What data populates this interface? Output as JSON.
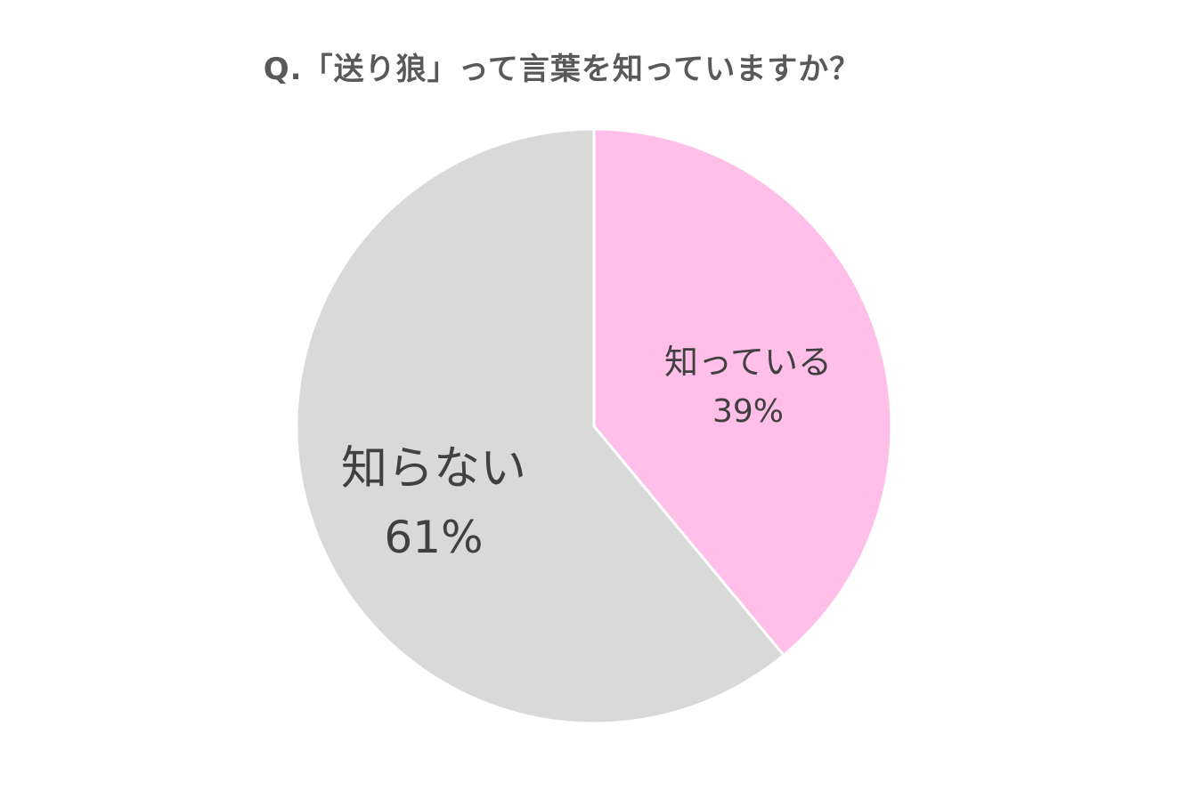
{
  "chart_data": {
    "type": "pie",
    "title": "Q.「送り狼」って言葉を知っていますか？",
    "slices": [
      {
        "label": "知っている",
        "value": 39,
        "value_label": "39%",
        "color": "#FFBFE8"
      },
      {
        "label": "知らない",
        "value": 61,
        "value_label": "61%",
        "color": "#D9D9D9"
      }
    ],
    "start": "12 o'clock",
    "direction": "clockwise",
    "legend": "none",
    "slice_border_color": "#FFFFFF"
  }
}
